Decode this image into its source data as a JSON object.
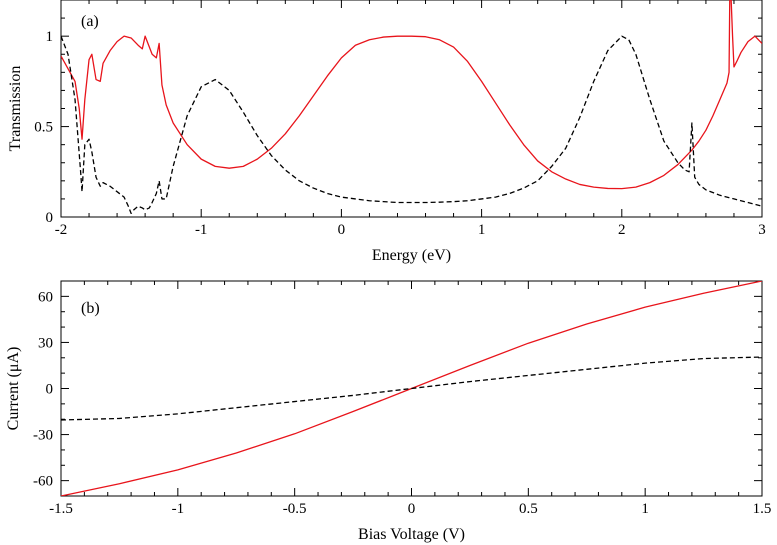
{
  "chart_data": [
    {
      "type": "line",
      "panel_label": "(a)",
      "xlabel": "Energy (eV)",
      "ylabel": "Transmission",
      "xlim": [
        -2,
        3
      ],
      "ylim": [
        0,
        1.2
      ],
      "xticks": [
        -2,
        -1,
        0,
        1,
        2,
        3
      ],
      "xtick_labels": [
        "-2",
        "-1",
        "0",
        "1",
        "2",
        "3"
      ],
      "yticks": [
        0,
        0.5,
        1
      ],
      "ytick_labels": [
        "0",
        "0.5",
        "1"
      ],
      "x_minor_step": 0.2,
      "y_minor_step": 0.1,
      "grid": false,
      "legend": "none",
      "series": [
        {
          "name": "solid-red",
          "color": "#e8141b",
          "dash": "solid",
          "x": [
            -2.0,
            -1.95,
            -1.9,
            -1.87,
            -1.85,
            -1.83,
            -1.8,
            -1.78,
            -1.75,
            -1.72,
            -1.7,
            -1.65,
            -1.6,
            -1.55,
            -1.5,
            -1.45,
            -1.42,
            -1.4,
            -1.38,
            -1.35,
            -1.32,
            -1.3,
            -1.28,
            -1.25,
            -1.2,
            -1.1,
            -1.0,
            -0.9,
            -0.8,
            -0.7,
            -0.6,
            -0.5,
            -0.4,
            -0.3,
            -0.2,
            -0.1,
            0.0,
            0.1,
            0.2,
            0.3,
            0.4,
            0.5,
            0.6,
            0.7,
            0.8,
            0.9,
            1.0,
            1.1,
            1.2,
            1.3,
            1.4,
            1.5,
            1.6,
            1.7,
            1.8,
            1.9,
            2.0,
            2.1,
            2.2,
            2.3,
            2.4,
            2.5,
            2.55,
            2.6,
            2.65,
            2.7,
            2.75,
            2.765,
            2.77,
            2.78,
            2.79,
            2.8,
            2.82,
            2.85,
            2.9,
            2.95,
            3.0
          ],
          "y": [
            0.89,
            0.82,
            0.75,
            0.6,
            0.43,
            0.65,
            0.87,
            0.9,
            0.76,
            0.75,
            0.85,
            0.92,
            0.97,
            1.0,
            0.99,
            0.95,
            0.93,
            1.0,
            0.96,
            0.9,
            0.88,
            0.96,
            0.73,
            0.62,
            0.52,
            0.4,
            0.32,
            0.28,
            0.27,
            0.28,
            0.32,
            0.38,
            0.46,
            0.56,
            0.67,
            0.78,
            0.88,
            0.95,
            0.98,
            0.995,
            1.0,
            1.0,
            0.997,
            0.98,
            0.94,
            0.86,
            0.75,
            0.63,
            0.51,
            0.4,
            0.31,
            0.25,
            0.21,
            0.18,
            0.165,
            0.158,
            0.157,
            0.165,
            0.19,
            0.23,
            0.29,
            0.37,
            0.42,
            0.48,
            0.56,
            0.65,
            0.74,
            0.8,
            1.2,
            1.2,
            1.0,
            0.83,
            0.86,
            0.91,
            0.97,
            1.0,
            0.96
          ]
        },
        {
          "name": "dashed-black",
          "color": "#000000",
          "dash": "dashed",
          "x": [
            -2.0,
            -1.95,
            -1.9,
            -1.88,
            -1.86,
            -1.85,
            -1.83,
            -1.8,
            -1.78,
            -1.75,
            -1.72,
            -1.7,
            -1.65,
            -1.6,
            -1.55,
            -1.52,
            -1.5,
            -1.48,
            -1.45,
            -1.42,
            -1.4,
            -1.37,
            -1.35,
            -1.32,
            -1.3,
            -1.28,
            -1.25,
            -1.2,
            -1.1,
            -1.0,
            -0.9,
            -0.8,
            -0.7,
            -0.6,
            -0.5,
            -0.4,
            -0.3,
            -0.2,
            -0.1,
            0.0,
            0.1,
            0.2,
            0.3,
            0.4,
            0.5,
            0.6,
            0.7,
            0.8,
            0.9,
            1.0,
            1.1,
            1.2,
            1.3,
            1.4,
            1.5,
            1.6,
            1.7,
            1.8,
            1.9,
            2.0,
            2.05,
            2.1,
            2.2,
            2.3,
            2.4,
            2.45,
            2.48,
            2.5,
            2.51,
            2.52,
            2.55,
            2.6,
            2.7,
            2.8,
            2.9,
            3.0
          ],
          "y": [
            1.0,
            0.9,
            0.65,
            0.45,
            0.25,
            0.14,
            0.4,
            0.43,
            0.36,
            0.22,
            0.17,
            0.19,
            0.17,
            0.14,
            0.11,
            0.06,
            0.02,
            0.04,
            0.06,
            0.05,
            0.04,
            0.05,
            0.08,
            0.13,
            0.2,
            0.1,
            0.1,
            0.28,
            0.56,
            0.72,
            0.76,
            0.7,
            0.58,
            0.45,
            0.34,
            0.26,
            0.2,
            0.16,
            0.13,
            0.11,
            0.1,
            0.09,
            0.085,
            0.08,
            0.08,
            0.08,
            0.082,
            0.085,
            0.09,
            0.1,
            0.11,
            0.13,
            0.16,
            0.2,
            0.28,
            0.38,
            0.55,
            0.75,
            0.92,
            1.0,
            0.98,
            0.9,
            0.65,
            0.42,
            0.3,
            0.26,
            0.25,
            0.52,
            0.37,
            0.22,
            0.18,
            0.15,
            0.12,
            0.1,
            0.08,
            0.06
          ]
        }
      ]
    },
    {
      "type": "line",
      "panel_label": "(b)",
      "xlabel": "Bias Voltage (V)",
      "ylabel": "Current (μA)",
      "xlim": [
        -1.5,
        1.5
      ],
      "ylim": [
        -70,
        70
      ],
      "xticks": [
        -1.5,
        -1,
        -0.5,
        0,
        0.5,
        1,
        1.5
      ],
      "xtick_labels": [
        "-1.5",
        "-1",
        "-0.5",
        "0",
        "0.5",
        "1",
        "1.5"
      ],
      "yticks": [
        -60,
        -30,
        0,
        30,
        60
      ],
      "ytick_labels": [
        "-60",
        "-30",
        "0",
        "30",
        "60"
      ],
      "x_minor_step": 0.1,
      "y_minor_step": 10,
      "grid": false,
      "legend": "none",
      "series": [
        {
          "name": "solid-red",
          "color": "#e8141b",
          "dash": "solid",
          "x": [
            -1.5,
            -1.25,
            -1.0,
            -0.75,
            -0.5,
            -0.25,
            0.0,
            0.25,
            0.5,
            0.75,
            1.0,
            1.25,
            1.5
          ],
          "y": [
            -70,
            -62,
            -53,
            -42,
            -29.5,
            -15,
            0,
            15,
            29.5,
            42,
            53,
            62,
            70
          ]
        },
        {
          "name": "dashed-black",
          "color": "#000000",
          "dash": "dashed",
          "x": [
            -1.5,
            -1.25,
            -1.0,
            -0.75,
            -0.5,
            -0.25,
            0.0,
            0.25,
            0.5,
            0.75,
            1.0,
            1.25,
            1.5
          ],
          "y": [
            -20.5,
            -19.5,
            -16.5,
            -12.5,
            -8.5,
            -4.5,
            0,
            4.5,
            8.5,
            12.5,
            16.5,
            19.5,
            20.5
          ]
        }
      ]
    }
  ]
}
